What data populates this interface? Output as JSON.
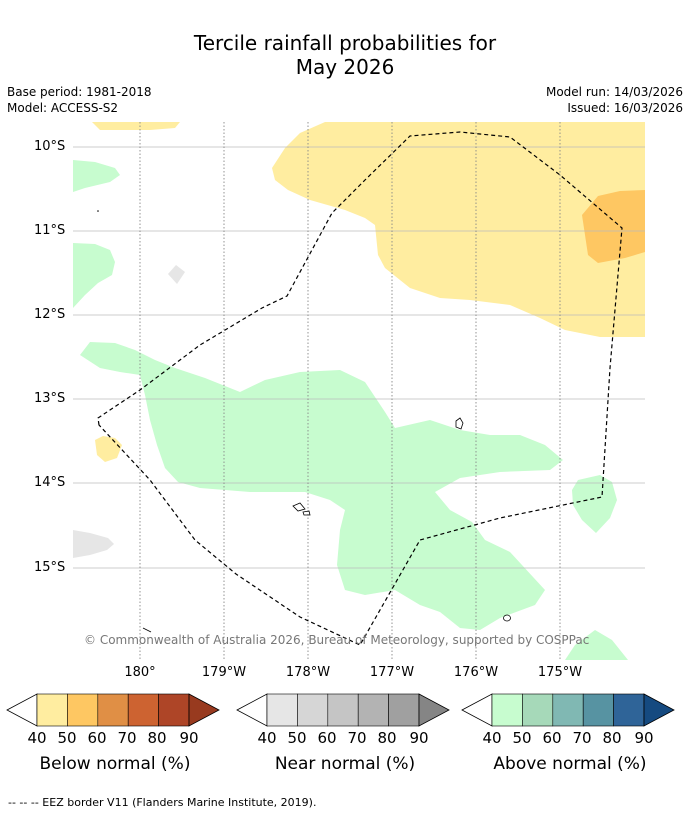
{
  "title_line1": "Tercile rainfall probabilities for",
  "title_line2": "May 2026",
  "base_period": "Base period: 1981-2018",
  "model": "Model: ACCESS-S2",
  "model_run": "Model run: 14/03/2026",
  "issued": "Issued: 16/03/2026",
  "lat_labels": [
    "10°S",
    "11°S",
    "12°S",
    "13°S",
    "14°S",
    "15°S"
  ],
  "lon_labels": [
    "180°",
    "179°W",
    "178°W",
    "177°W",
    "176°W",
    "175°W"
  ],
  "copyright": "© Commonwealth of Australia 2026, Bureau of Meteorology, supported by COSPPac",
  "colorbars": [
    {
      "caption": "Below normal (%)",
      "ticks": [
        "40",
        "50",
        "60",
        "70",
        "80",
        "90"
      ],
      "colors": [
        "#ffeda0",
        "#fec762",
        "#e08f45",
        "#cd6331",
        "#ae4527",
        "#983a1f"
      ]
    },
    {
      "caption": "Near normal (%)",
      "ticks": [
        "40",
        "50",
        "60",
        "70",
        "80",
        "90"
      ],
      "colors": [
        "#e6e6e6",
        "#d6d6d6",
        "#c5c5c5",
        "#b3b3b3",
        "#a0a0a0",
        "#858585"
      ]
    },
    {
      "caption": "Above normal (%)",
      "ticks": [
        "40",
        "50",
        "60",
        "70",
        "80",
        "90"
      ],
      "colors": [
        "#c7fccf",
        "#a6d9b9",
        "#80b8b3",
        "#5793a2",
        "#2f6498",
        "#154a80"
      ]
    }
  ],
  "footer": "--  --  -- EEZ border V11 (Flanders Marine Institute, 2019)."
}
